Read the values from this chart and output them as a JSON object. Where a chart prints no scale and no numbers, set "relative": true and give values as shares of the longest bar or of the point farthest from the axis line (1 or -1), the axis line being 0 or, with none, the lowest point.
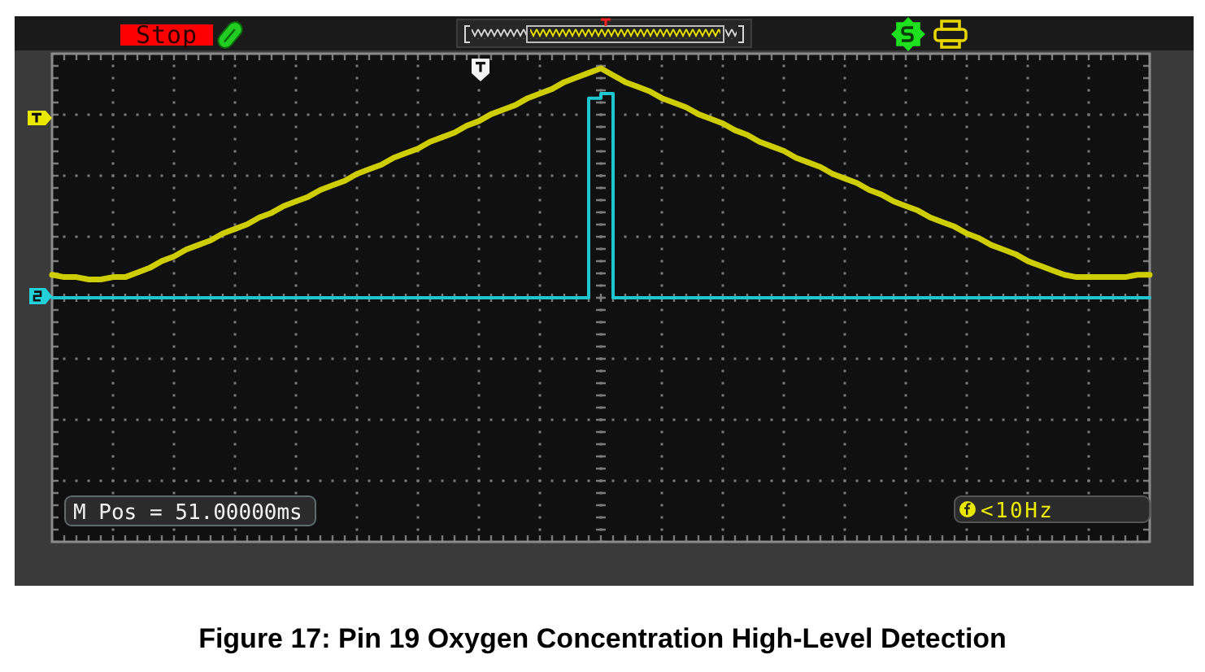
{
  "chart_data": {
    "type": "line",
    "relative": true,
    "grid": true,
    "categories": [
      null,
      null,
      null,
      null,
      null,
      null,
      null,
      null,
      null,
      null,
      null,
      null,
      null,
      null,
      null,
      null,
      null,
      null,
      null,
      null,
      null,
      null,
      null,
      null,
      null,
      null,
      null,
      null,
      null,
      null,
      null,
      null,
      null,
      null,
      null,
      null,
      null,
      null,
      null,
      null,
      null,
      null,
      null,
      null,
      null,
      null,
      null,
      null,
      null,
      null,
      null,
      null,
      null,
      null,
      null,
      null,
      null,
      null,
      null,
      null,
      null,
      null,
      null,
      null,
      null,
      null,
      null,
      null,
      null,
      null,
      null,
      null,
      null,
      null,
      null,
      null,
      null,
      null,
      null,
      null,
      null,
      null,
      null,
      null,
      null,
      null,
      null,
      null,
      null,
      null,
      null
    ],
    "series": [
      {
        "color": "#cdcd00",
        "values": [
          0.1,
          0.09,
          0.09,
          0.08,
          0.08,
          0.09,
          0.09,
          0.11,
          0.13,
          0.16,
          0.18,
          0.21,
          0.23,
          0.25,
          0.28,
          0.3,
          0.32,
          0.35,
          0.37,
          0.4,
          0.42,
          0.44,
          0.47,
          0.49,
          0.51,
          0.54,
          0.56,
          0.58,
          0.61,
          0.63,
          0.65,
          0.68,
          0.7,
          0.72,
          0.75,
          0.77,
          0.8,
          0.82,
          0.84,
          0.87,
          0.89,
          0.91,
          0.94,
          0.96,
          0.98,
          1,
          0.97,
          0.94,
          0.92,
          0.9,
          0.87,
          0.85,
          0.83,
          0.8,
          0.78,
          0.76,
          0.73,
          0.71,
          0.68,
          0.66,
          0.64,
          0.61,
          0.59,
          0.57,
          0.54,
          0.52,
          0.5,
          0.47,
          0.45,
          0.42,
          0.4,
          0.38,
          0.35,
          0.33,
          0.31,
          0.28,
          0.26,
          0.23,
          0.21,
          0.19,
          0.16,
          0.14,
          0.12,
          0.1,
          0.09,
          0.09,
          0.09,
          0.09,
          0.09,
          0.1,
          0.1
        ]
      },
      {
        "type": "step",
        "color": "#1fc6cf",
        "values": [
          0,
          0,
          0,
          0,
          0,
          0,
          0,
          0,
          0,
          0,
          0,
          0,
          0,
          0,
          0,
          0,
          0,
          0,
          0,
          0,
          0,
          0,
          0,
          0,
          0,
          0,
          0,
          0,
          0,
          0,
          0,
          0,
          0,
          0,
          0,
          0,
          0,
          0,
          0,
          0,
          0,
          0,
          0,
          0,
          0.87,
          0.89,
          0,
          0,
          0,
          0,
          0,
          0,
          0,
          0,
          0,
          0,
          0,
          0,
          0,
          0,
          0,
          0,
          0,
          0,
          0,
          0,
          0,
          0,
          0,
          0,
          0,
          0,
          0,
          0,
          0,
          0,
          0,
          0,
          0,
          0,
          0,
          0,
          0,
          0,
          0,
          0,
          0,
          0,
          0,
          0,
          0
        ]
      }
    ],
    "annotations": [
      "Stop",
      "M Pos = 51.00000ms",
      "<10Hz",
      "Figure 17: Pin 19 Oxygen Concentration High-Level Detection"
    ]
  }
}
